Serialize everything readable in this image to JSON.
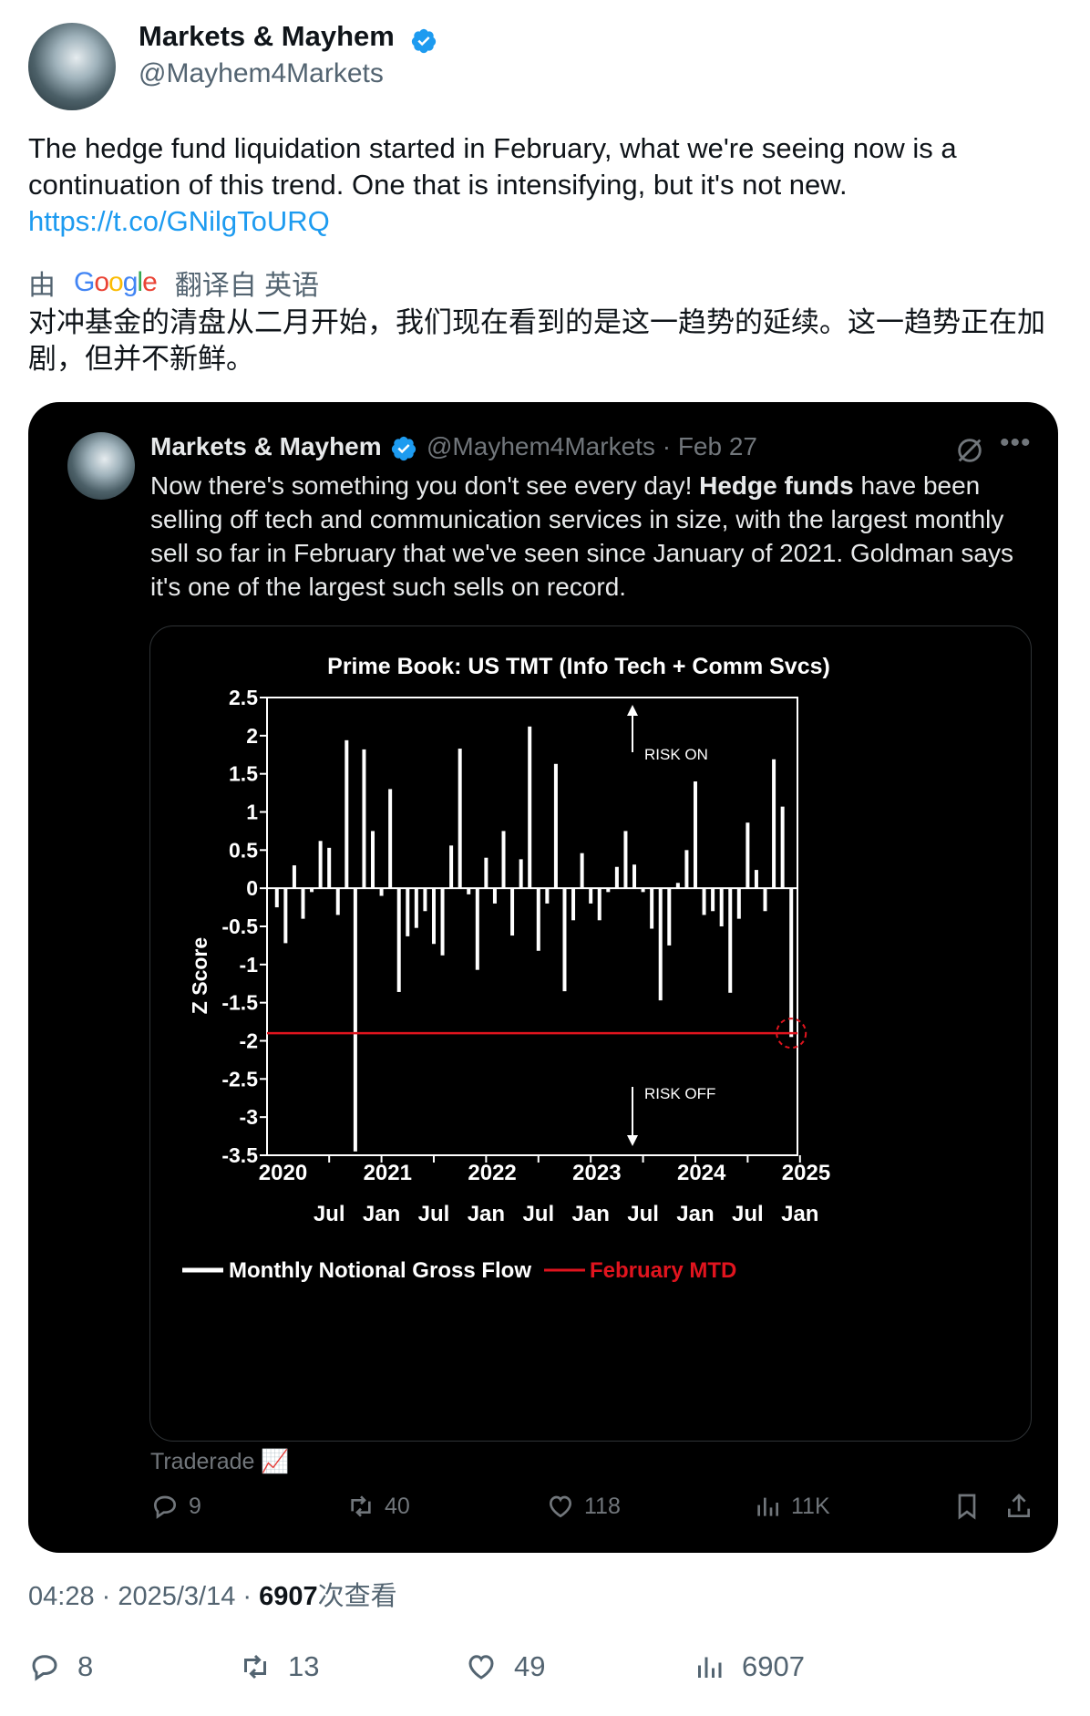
{
  "tweet": {
    "author_name": "Markets & Mayhem",
    "handle": "@Mayhem4Markets",
    "text": "The hedge fund liquidation started in February, what we're seeing now is a continuation of this trend. One that is intensifying, but it's not new.",
    "link": "https://t.co/GNilgToURQ",
    "translate_prefix": "由",
    "translate_brand": "Google",
    "translate_suffix": "翻译自 英语",
    "translated_text": "对冲基金的清盘从二月开始，我们现在看到的是这一趋势的延续。这一趋势正在加剧，但并不新鲜。",
    "time": "04:28 · 2025/3/14 · ",
    "views_count": "6907",
    "views_label": "次查看",
    "stats": {
      "replies": "8",
      "retweets": "13",
      "likes": "49",
      "views": "6907"
    }
  },
  "quote": {
    "author_name": "Markets & Mayhem",
    "handle_date": "@Mayhem4Markets · Feb 27",
    "text_before": "Now there's something you don't see every day! ",
    "text_bold": "Hedge funds",
    "text_after": " have been selling off tech and communication services in size, with the largest monthly sell so far in February that we've seen since January of 2021. Goldman says it's one of the largest such sells on record.",
    "source": "Traderade 📈",
    "stats": {
      "replies": "9",
      "retweets": "40",
      "likes": "118",
      "views": "11K"
    }
  },
  "icons": {
    "verified": "verified-badge-icon",
    "reply": "reply-icon",
    "retweet": "retweet-icon",
    "like": "heart-icon",
    "views": "bar-chart-icon",
    "bookmark": "bookmark-icon",
    "share": "share-icon"
  },
  "colors": {
    "accent": "#1d9bf0",
    "series_white": "#ffffff",
    "series_red": "#e0141e"
  },
  "chart_data": {
    "type": "bar",
    "title": "Prime Book: US TMT (Info Tech + Comm Svcs)",
    "ylabel": "Z Score",
    "ylim": [
      -3.5,
      2.5
    ],
    "yticks": [
      "2.5",
      "2",
      "1.5",
      "1",
      "0.5",
      "0",
      "-0.5",
      "-1",
      "-1.5",
      "-2",
      "-2.5",
      "-3",
      "-3.5"
    ],
    "year_labels": [
      "2020",
      "2021",
      "2022",
      "2023",
      "2024",
      "2025"
    ],
    "month_labels": [
      "Jul",
      "Jan",
      "Jul",
      "Jan",
      "Jul",
      "Jan",
      "Jul",
      "Jan",
      "Jul",
      "Jan"
    ],
    "annotation_up": "RISK ON",
    "annotation_down": "RISK OFF",
    "reference_line": {
      "name": "February MTD",
      "value": -1.9
    },
    "x_start": "2020-01",
    "values": [
      -0.25,
      -0.72,
      0.3,
      -0.4,
      -0.05,
      0.62,
      0.53,
      -0.35,
      1.94,
      -3.45,
      1.82,
      0.75,
      -0.1,
      1.3,
      -1.36,
      -0.63,
      -0.52,
      -0.3,
      -0.73,
      -0.88,
      0.56,
      1.83,
      -0.08,
      -1.07,
      0.4,
      -0.2,
      0.75,
      -0.62,
      0.38,
      2.12,
      -0.82,
      -0.2,
      1.63,
      -1.35,
      -0.42,
      0.46,
      -0.2,
      -0.42,
      -0.05,
      0.28,
      0.75,
      0.31,
      -0.05,
      -0.53,
      -1.47,
      -0.75,
      0.07,
      0.5,
      1.4,
      -0.35,
      -0.3,
      -0.5,
      -1.37,
      -0.4,
      0.86,
      0.24,
      -0.3,
      1.69,
      1.07,
      -1.95
    ],
    "legend": [
      "Monthly Notional Gross Flow",
      "February MTD"
    ]
  }
}
